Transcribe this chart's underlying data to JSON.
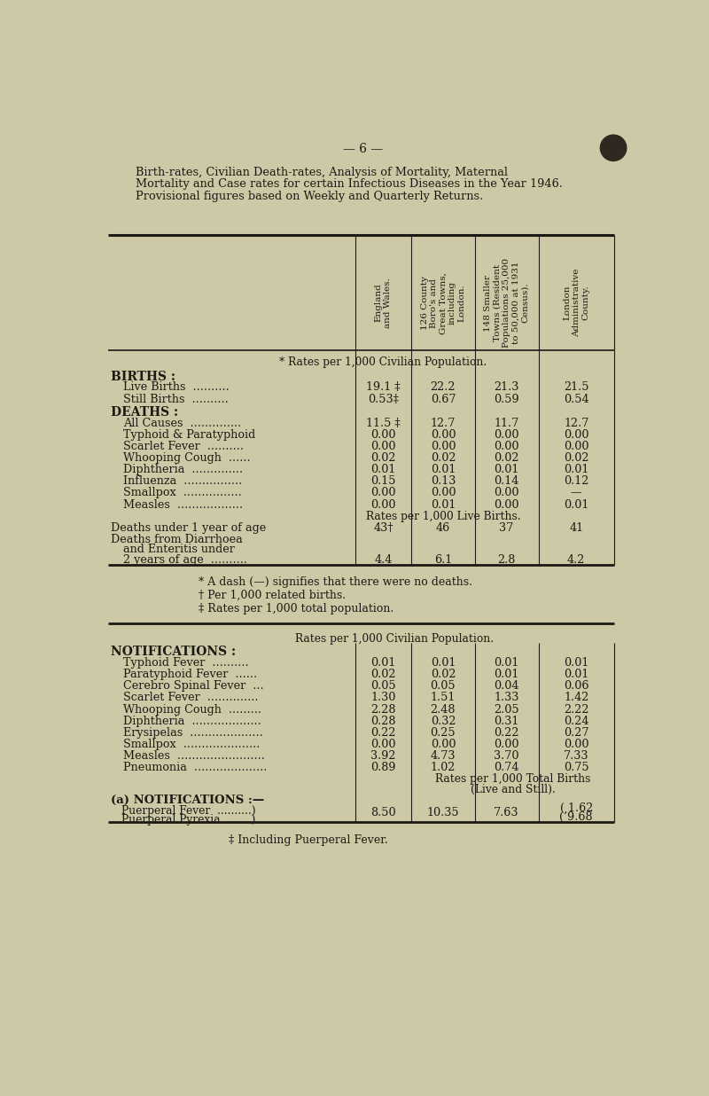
{
  "bg_color": "#cdc8a5",
  "page_number": "— 6 —",
  "title_lines": [
    "Birth-rates, Civilian Death-rates, Analysis of Mortality, Maternal",
    "Mortality and Case rates for certain Infectious Diseases in the Year 1946.",
    "Provisional figures based on Weekly and Quarterly Returns."
  ],
  "col_headers": [
    "England\nand Wales.",
    "126 County\nBoro's and\nGreat Towns,\nincluding\nLondon.",
    "148 Smaller\nTowns (Resident\nPopulations 25,000\nto 50,000 at 1931\nCensus).",
    "London\nAdministrative\nCounty."
  ],
  "section1_header": "* Rates per 1,000 Civilian Population.",
  "births_header": "BIRTHS :",
  "births_rows": [
    [
      "Live Births  ..........",
      "19.1 ‡",
      "22.2",
      "21.3",
      "21.5"
    ],
    [
      "Still Births  ..........",
      "0.53‡",
      "0.67",
      "0.59",
      "0.54"
    ]
  ],
  "deaths_header": "DEATHS :",
  "deaths_rows": [
    [
      "All Causes  ..............",
      "11.5 ‡",
      "12.7",
      "11.7",
      "12.7"
    ],
    [
      "Typhoid & Paratyphoid",
      "0.00",
      "0.00",
      "0.00",
      "0.00"
    ],
    [
      "Scarlet Fever  ..........",
      "0.00",
      "0.00",
      "0.00",
      "0.00"
    ],
    [
      "Whooping Cough  ......",
      "0.02",
      "0.02",
      "0.02",
      "0.02"
    ],
    [
      "Diphtheria  ..............",
      "0.01",
      "0.01",
      "0.01",
      "0.01"
    ],
    [
      "Influenza  ................",
      "0.15",
      "0.13",
      "0.14",
      "0.12"
    ],
    [
      "Smallpox  ................",
      "0.00",
      "0.00",
      "0.00",
      "—"
    ],
    [
      "Measles  ..................",
      "0.00",
      "0.01",
      "0.00",
      "0.01"
    ]
  ],
  "section2_header": "Rates per 1,000 Live Births.",
  "livebirths_row1": [
    "Deaths under 1 year of age",
    "43†",
    "46",
    "37",
    "41"
  ],
  "livebirths_row2_label": [
    "Deaths from Diarrhoea",
    "and Enteritis under",
    "2 years of age  .........."
  ],
  "livebirths_row2_vals": [
    "4.4",
    "6.1",
    "2.8",
    "4.2"
  ],
  "footnotes1": [
    "* A dash (—) signifies that there were no deaths.",
    "† Per 1,000 related births.",
    "‡ Rates per 1,000 total population."
  ],
  "section3_header": "Rates per 1,000 Civilian Population.",
  "notif_header": "NOTIFICATIONS :",
  "notif_rows": [
    [
      "Typhoid Fever  ..........",
      "0.01",
      "0.01",
      "0.01",
      "0.01"
    ],
    [
      "Paratyphoid Fever  ......",
      "0.02",
      "0.02",
      "0.01",
      "0.01"
    ],
    [
      "Cerebro Spinal Fever  ...",
      "0.05",
      "0.05",
      "0.04",
      "0.06"
    ],
    [
      "Scarlet Fever  ..............",
      "1.30",
      "1.51",
      "1.33",
      "1.42"
    ],
    [
      "Whooping Cough  .........",
      "2.28",
      "2.48",
      "2.05",
      "2.22"
    ],
    [
      "Diphtheria  ...................",
      "0.28",
      "0.32",
      "0.31",
      "0.24"
    ],
    [
      "Erysipelas  ....................",
      "0.22",
      "0.25",
      "0.22",
      "0.27"
    ],
    [
      "Smallpox  .....................",
      "0.00",
      "0.00",
      "0.00",
      "0.00"
    ],
    [
      "Measles  ........................",
      "3.92",
      "4.73",
      "3.70",
      "7.33"
    ],
    [
      "Pneumonia  ....................",
      "0.89",
      "1.02",
      "0.74",
      "0.75"
    ]
  ],
  "section4_line1": "Rates per 1,000 Total Births",
  "section4_line2": "(Live and Still).",
  "notif_a_header": "(a) NOTIFICATIONS :—",
  "notif_a_sub1": "Puerperal Fever  ..........)  ",
  "notif_a_sub2": "Puerperal Pyrexia  .......) ",
  "notif_a_v1": "8.50",
  "notif_a_v2": "10.35",
  "notif_a_v3": "7.63",
  "notif_a_v4a": "( 1.62",
  "notif_a_v4b": "(’9.68",
  "footnote2": "‡ Including Puerperal Fever.",
  "text_color": "#1c1a14",
  "line_color": "#1c1a14",
  "circle_color": "#2e2820"
}
